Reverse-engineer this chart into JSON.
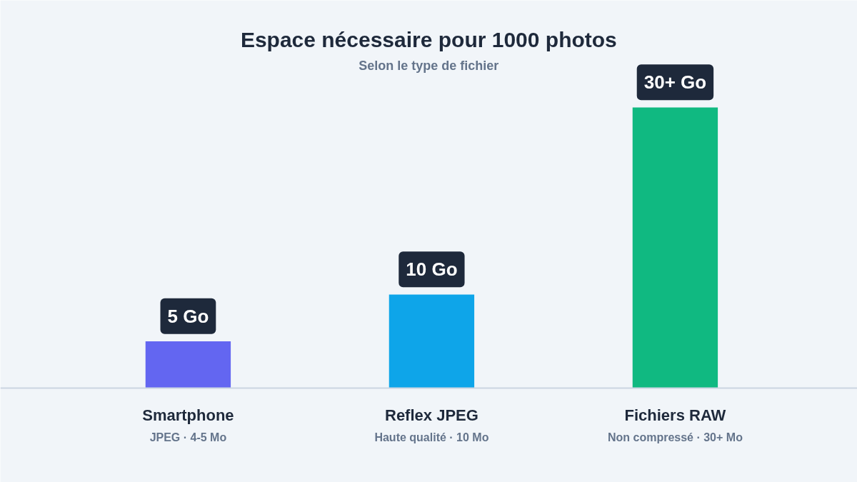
{
  "chart_data": {
    "type": "bar",
    "title": "Espace nécessaire pour 1000 photos",
    "subtitle": "Selon le type de fichier",
    "categories": [
      "Smartphone",
      "Reflex JPEG",
      "Fichiers RAW"
    ],
    "values": [
      5,
      10,
      30
    ],
    "colors": [
      "#6366f1",
      "#0ea5e9",
      "#10b981"
    ],
    "value_labels": [
      "5 Go",
      "10 Go",
      "30+ Go"
    ],
    "annotations": [
      "JPEG · 4-5 Mo",
      "Haute qualité · 10 Mo",
      "Non compressé · 30+ Mo"
    ],
    "grid": false,
    "tick_labels": false
  }
}
